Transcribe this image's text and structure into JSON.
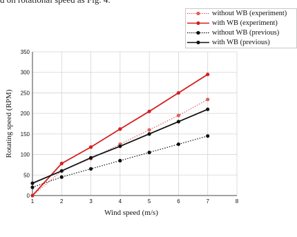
{
  "caption_fragment": "d on rotational speed as Fig. 4.",
  "chart_data": {
    "type": "line",
    "title": "",
    "xlabel": "Wind speed (m/s)",
    "ylabel": "Rotating speed (RPM)",
    "xlim": [
      1,
      8
    ],
    "ylim": [
      0,
      350
    ],
    "x_ticks": [
      1,
      2,
      3,
      4,
      5,
      6,
      7,
      8
    ],
    "y_ticks": [
      0,
      50,
      100,
      150,
      200,
      250,
      300,
      350
    ],
    "grid": true,
    "legend_position": "top-right, outside plot",
    "series": [
      {
        "name": "without WB (experiment)",
        "color": "#e06060",
        "line_style": "dotted",
        "x": [
          1,
          2,
          3,
          4,
          5,
          6,
          7
        ],
        "values": [
          0,
          60,
          90,
          125,
          160,
          195,
          234
        ]
      },
      {
        "name": "with WB (experiment)",
        "color": "#d42020",
        "line_style": "solid",
        "x": [
          1,
          2,
          3,
          4,
          5,
          6,
          7
        ],
        "values": [
          0,
          78,
          118,
          162,
          205,
          250,
          295
        ]
      },
      {
        "name": "without WB (previous)",
        "color": "#111111",
        "line_style": "dotted",
        "x": [
          1,
          2,
          3,
          4,
          5,
          6,
          7
        ],
        "values": [
          20,
          45,
          65,
          85,
          105,
          125,
          145
        ]
      },
      {
        "name": "with WB (previous)",
        "color": "#111111",
        "line_style": "solid",
        "x": [
          1,
          2,
          3,
          4,
          5,
          6,
          7
        ],
        "values": [
          30,
          60,
          92,
          120,
          150,
          180,
          210
        ]
      }
    ]
  }
}
